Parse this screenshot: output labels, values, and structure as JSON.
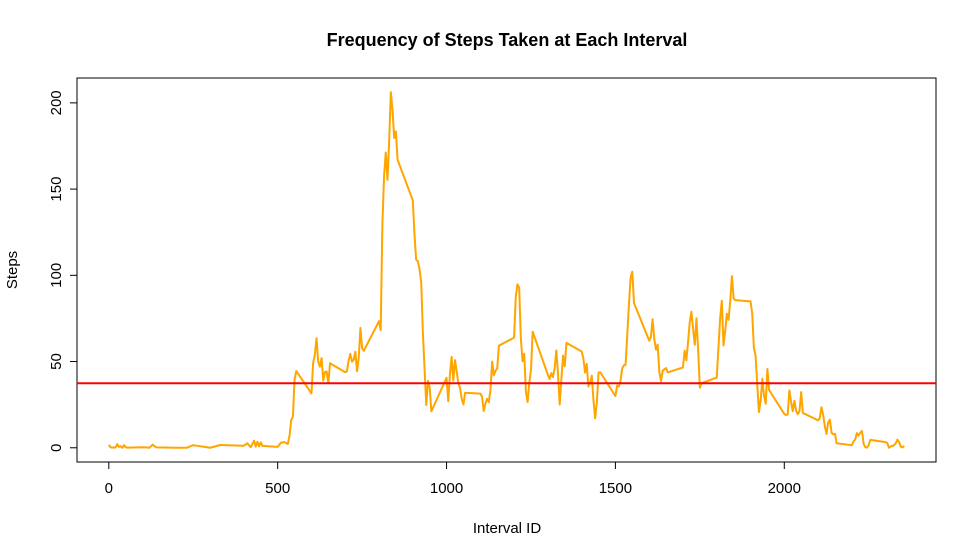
{
  "chart_data": {
    "type": "line",
    "title": "Frequency of Steps Taken at Each Interval",
    "x_label": "Interval ID",
    "y_label": "Steps",
    "color": "orange",
    "x": [
      0,
      5,
      10,
      15,
      20,
      25,
      30,
      35,
      40,
      45,
      50,
      55,
      100,
      110,
      120,
      130,
      140,
      200,
      230,
      250,
      300,
      330,
      400,
      410,
      420,
      430,
      435,
      440,
      445,
      450,
      455,
      500,
      510,
      520,
      530,
      535,
      540,
      545,
      550,
      555,
      600,
      605,
      610,
      615,
      620,
      625,
      630,
      635,
      640,
      645,
      650,
      655,
      700,
      705,
      710,
      715,
      720,
      725,
      730,
      735,
      740,
      745,
      750,
      755,
      800,
      805,
      810,
      815,
      820,
      825,
      830,
      835,
      840,
      845,
      850,
      855,
      900,
      905,
      910,
      915,
      920,
      925,
      930,
      935,
      940,
      945,
      950,
      955,
      1000,
      1005,
      1010,
      1015,
      1020,
      1025,
      1030,
      1035,
      1040,
      1045,
      1050,
      1055,
      1100,
      1105,
      1110,
      1115,
      1120,
      1125,
      1130,
      1135,
      1140,
      1145,
      1150,
      1155,
      1200,
      1205,
      1210,
      1215,
      1220,
      1225,
      1230,
      1235,
      1240,
      1245,
      1250,
      1255,
      1300,
      1305,
      1310,
      1315,
      1320,
      1325,
      1330,
      1335,
      1340,
      1345,
      1350,
      1355,
      1400,
      1405,
      1410,
      1415,
      1420,
      1425,
      1430,
      1435,
      1440,
      1445,
      1450,
      1455,
      1500,
      1505,
      1510,
      1515,
      1520,
      1525,
      1530,
      1535,
      1540,
      1545,
      1550,
      1555,
      1600,
      1605,
      1610,
      1615,
      1620,
      1625,
      1630,
      1635,
      1640,
      1645,
      1650,
      1655,
      1700,
      1705,
      1710,
      1715,
      1720,
      1725,
      1730,
      1735,
      1740,
      1745,
      1750,
      1755,
      1800,
      1805,
      1810,
      1815,
      1820,
      1825,
      1830,
      1835,
      1840,
      1845,
      1850,
      1855,
      1900,
      1905,
      1910,
      1915,
      1920,
      1925,
      1930,
      1935,
      1940,
      1945,
      1950,
      1955,
      2000,
      2005,
      2010,
      2015,
      2020,
      2025,
      2030,
      2035,
      2040,
      2045,
      2050,
      2055,
      2100,
      2105,
      2110,
      2115,
      2120,
      2125,
      2130,
      2135,
      2140,
      2145,
      2150,
      2155,
      2200,
      2205,
      2210,
      2215,
      2220,
      2225,
      2230,
      2235,
      2240,
      2245,
      2250,
      2255,
      2300,
      2305,
      2310,
      2315,
      2320,
      2325,
      2330,
      2335,
      2340,
      2345,
      2350,
      2355
    ],
    "values": [
      1.7,
      0.3,
      0.1,
      0.2,
      0.1,
      2.1,
      0.5,
      0.9,
      0,
      1.5,
      0.3,
      0.1,
      0.3,
      0.2,
      0,
      1.8,
      0.2,
      0,
      0,
      1.5,
      0,
      1.6,
      1.2,
      2.6,
      0.3,
      4.1,
      0.7,
      3.5,
      0.8,
      3.1,
      1.1,
      0.5,
      3,
      3.3,
      2.2,
      6.9,
      16,
      18,
      39.5,
      44.5,
      31.5,
      49.3,
      53.8,
      63.5,
      50,
      47,
      52,
      39,
      44,
      44.2,
      37.4,
      49,
      43.8,
      44.4,
      50.5,
      54.5,
      49.9,
      51,
      55.7,
      44.3,
      52.3,
      69.5,
      57.8,
      56.2,
      73.4,
      68.2,
      129.4,
      157.5,
      171.2,
      155.4,
      177.3,
      206.2,
      195.9,
      179.6,
      183.4,
      167,
      143.5,
      124,
      109.1,
      108.1,
      103.7,
      95.9,
      66.2,
      45.2,
      24.8,
      38.8,
      34.98,
      21.1,
      40.6,
      27,
      42.4,
      52.7,
      38.9,
      50.8,
      44.3,
      37.4,
      34.7,
      28.3,
      25.1,
      31.9,
      31.4,
      29.7,
      21.3,
      25.5,
      28.4,
      26.5,
      33.4,
      49.98,
      42,
      44.6,
      46,
      59.2,
      63.9,
      87.7,
      94.8,
      92.8,
      63.4,
      50.2,
      54.5,
      32.4,
      26.5,
      37.7,
      45.1,
      67.3,
      42.3,
      39.9,
      43.3,
      40.98,
      46.2,
      56.4,
      42.8,
      25.1,
      40,
      53.5,
      47.3,
      60.8,
      55.8,
      51.96,
      43.6,
      48.7,
      35.5,
      37.5,
      41.8,
      27.5,
      17.1,
      26.1,
      43.6,
      43.8,
      30,
      36.1,
      35.5,
      38.8,
      45.96,
      47.8,
      48.1,
      65.3,
      82.9,
      98.7,
      102.1,
      83.96,
      62.1,
      64.1,
      74.5,
      63.2,
      56.9,
      59.8,
      43.9,
      38.6,
      44.7,
      45.5,
      46.2,
      43.7,
      46.6,
      56.3,
      50.7,
      61.2,
      72.7,
      78.9,
      68.9,
      59.7,
      75.1,
      56.5,
      34.8,
      37.5,
      40.7,
      58,
      74.7,
      85.3,
      59.3,
      67.8,
      77.7,
      74.2,
      85.3,
      99.5,
      86.6,
      85.6,
      84.9,
      77.8,
      58,
      53.4,
      36.3,
      20.7,
      27.4,
      40,
      30.2,
      25.5,
      45.7,
      33.5,
      19.6,
      19,
      19.3,
      33.3,
      26.8,
      21.2,
      27.3,
      21.3,
      19.5,
      21.3,
      32.3,
      20.2,
      15.9,
      17.2,
      23.5,
      19.2,
      12.5,
      8,
      14.7,
      16.3,
      8.7,
      7.8,
      8.1,
      2.6,
      1.5,
      3.7,
      4.8,
      8.5,
      7.1,
      8.7,
      9.75,
      2.2,
      0.3,
      0.1,
      1.6,
      4.6,
      3.3,
      2.8,
      0,
      0.8,
      0.96,
      1.6,
      2.6,
      4.7,
      3.3,
      0.6,
      0.2,
      1.1
    ],
    "hline": {
      "value": 37.38,
      "color": "red"
    },
    "xlim": [
      -94.2,
      2449.2
    ],
    "ylim": [
      -8.25,
      214.42
    ],
    "xticks": [
      0,
      500,
      1000,
      1500,
      2000
    ],
    "yticks": [
      0,
      50,
      100,
      150,
      200
    ]
  }
}
